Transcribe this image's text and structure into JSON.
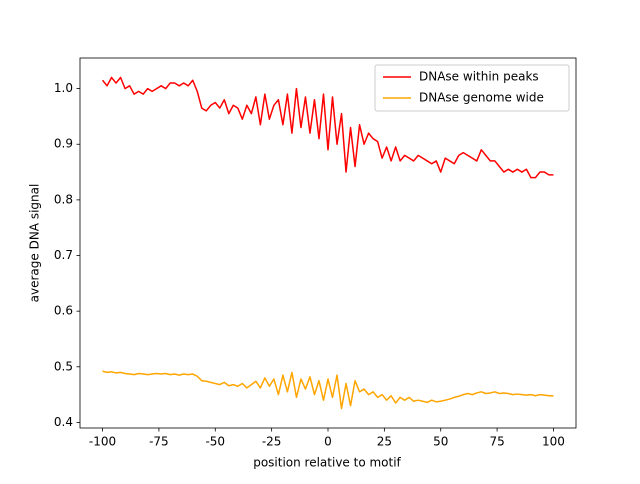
{
  "chart_data": {
    "type": "line",
    "x_label": "position relative to motif",
    "y_label": "average DNA signal",
    "x": [
      -100,
      -98,
      -96,
      -94,
      -92,
      -90,
      -88,
      -86,
      -84,
      -82,
      -80,
      -78,
      -76,
      -74,
      -72,
      -70,
      -68,
      -66,
      -64,
      -62,
      -60,
      -58,
      -56,
      -54,
      -52,
      -50,
      -48,
      -46,
      -44,
      -42,
      -40,
      -38,
      -36,
      -34,
      -32,
      -30,
      -28,
      -26,
      -24,
      -22,
      -20,
      -18,
      -16,
      -14,
      -12,
      -10,
      -8,
      -6,
      -4,
      -2,
      0,
      2,
      4,
      6,
      8,
      10,
      12,
      14,
      16,
      18,
      20,
      22,
      24,
      26,
      28,
      30,
      32,
      34,
      36,
      38,
      40,
      42,
      44,
      46,
      48,
      50,
      52,
      54,
      56,
      58,
      60,
      62,
      64,
      66,
      68,
      70,
      72,
      74,
      76,
      78,
      80,
      82,
      84,
      86,
      88,
      90,
      92,
      94,
      96,
      98,
      100
    ],
    "series": [
      {
        "name": "DNAse within peaks",
        "color": "#ff0000",
        "values": [
          1.015,
          1.005,
          1.02,
          1.01,
          1.02,
          1.0,
          1.005,
          0.99,
          0.995,
          0.99,
          1.0,
          0.995,
          1.0,
          1.005,
          1.0,
          1.01,
          1.01,
          1.005,
          1.01,
          1.005,
          1.015,
          0.995,
          0.965,
          0.96,
          0.97,
          0.975,
          0.965,
          0.98,
          0.955,
          0.97,
          0.965,
          0.945,
          0.97,
          0.955,
          0.985,
          0.935,
          0.99,
          0.945,
          0.97,
          0.98,
          0.935,
          0.99,
          0.92,
          1.0,
          0.93,
          0.985,
          0.92,
          0.98,
          0.91,
          0.99,
          0.89,
          0.985,
          0.9,
          0.955,
          0.85,
          0.93,
          0.86,
          0.935,
          0.9,
          0.92,
          0.91,
          0.905,
          0.875,
          0.895,
          0.87,
          0.895,
          0.87,
          0.88,
          0.875,
          0.87,
          0.88,
          0.875,
          0.87,
          0.865,
          0.87,
          0.85,
          0.875,
          0.87,
          0.865,
          0.88,
          0.885,
          0.88,
          0.875,
          0.87,
          0.89,
          0.88,
          0.87,
          0.87,
          0.86,
          0.85,
          0.855,
          0.85,
          0.855,
          0.85,
          0.855,
          0.84,
          0.84,
          0.85,
          0.85,
          0.845,
          0.845
        ]
      },
      {
        "name": "DNAse genome wide",
        "color": "#ffa500",
        "values": [
          0.492,
          0.49,
          0.491,
          0.489,
          0.49,
          0.488,
          0.487,
          0.486,
          0.488,
          0.487,
          0.486,
          0.487,
          0.488,
          0.487,
          0.488,
          0.486,
          0.487,
          0.485,
          0.487,
          0.486,
          0.487,
          0.483,
          0.475,
          0.474,
          0.472,
          0.47,
          0.468,
          0.472,
          0.466,
          0.468,
          0.465,
          0.47,
          0.462,
          0.468,
          0.474,
          0.462,
          0.48,
          0.465,
          0.478,
          0.45,
          0.485,
          0.455,
          0.49,
          0.445,
          0.478,
          0.46,
          0.482,
          0.45,
          0.475,
          0.44,
          0.478,
          0.445,
          0.485,
          0.425,
          0.47,
          0.43,
          0.475,
          0.455,
          0.46,
          0.45,
          0.455,
          0.445,
          0.45,
          0.44,
          0.448,
          0.435,
          0.445,
          0.44,
          0.445,
          0.438,
          0.44,
          0.438,
          0.436,
          0.44,
          0.437,
          0.438,
          0.44,
          0.442,
          0.445,
          0.447,
          0.45,
          0.452,
          0.45,
          0.453,
          0.455,
          0.452,
          0.453,
          0.455,
          0.452,
          0.453,
          0.452,
          0.45,
          0.451,
          0.45,
          0.449,
          0.45,
          0.448,
          0.45,
          0.449,
          0.448,
          0.448
        ]
      }
    ],
    "xlim": [
      -110,
      110
    ],
    "ylim": [
      0.39,
      1.055
    ],
    "xticks": [
      -100,
      -75,
      -50,
      -25,
      0,
      25,
      50,
      75,
      100
    ],
    "yticks": [
      0.4,
      0.5,
      0.6,
      0.7,
      0.8,
      0.9,
      {
        "value": 1,
        "label": "1.0"
      }
    ],
    "legend": "upper right",
    "grid": false
  }
}
